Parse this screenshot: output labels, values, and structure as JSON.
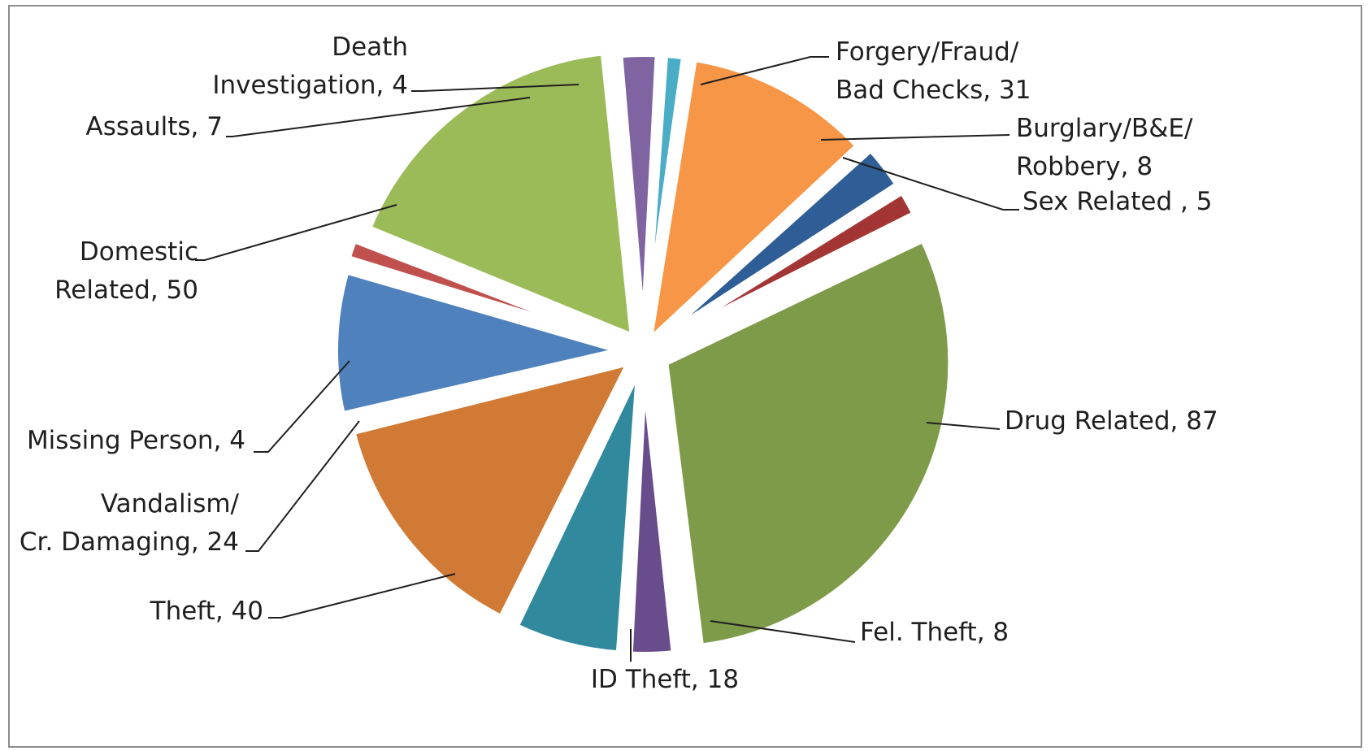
{
  "chart_data": {
    "type": "pie",
    "title": "",
    "slices": [
      {
        "label_lines": [
          "Forgery/Fraud/",
          "Bad Checks, 31"
        ],
        "category": "Forgery/Fraud/ Bad Checks",
        "value": 31,
        "color": "#F79646"
      },
      {
        "label_lines": [
          "Burglary/B&E/",
          "Robbery, 8"
        ],
        "category": "Burglary/B&E/ Robbery",
        "value": 8,
        "color": "#2E5E95"
      },
      {
        "label_lines": [
          "Sex Related , 5"
        ],
        "category": "Sex Related",
        "value": 5,
        "color": "#A33634"
      },
      {
        "label_lines": [
          "Drug Related, 87"
        ],
        "category": "Drug Related",
        "value": 87,
        "color": "#7D9B48"
      },
      {
        "label_lines": [
          "Fel. Theft, 8"
        ],
        "category": "Fel. Theft",
        "value": 8,
        "color": "#694C8C"
      },
      {
        "label_lines": [
          "ID Theft, 18"
        ],
        "category": "ID Theft",
        "value": 18,
        "color": "#31899E"
      },
      {
        "label_lines": [
          "Theft, 40"
        ],
        "category": "Theft",
        "value": 40,
        "color": "#D07A35"
      },
      {
        "label_lines": [
          "Vandalism/",
          "Cr. Damaging, 24"
        ],
        "category": "Vandalism/ Cr. Damaging",
        "value": 24,
        "color": "#4F81BD"
      },
      {
        "label_lines": [
          "Missing Person, 4"
        ],
        "category": "Missing Person",
        "value": 4,
        "color": "#C0504D"
      },
      {
        "label_lines": [
          "Domestic",
          "Related, 50"
        ],
        "category": "Domestic Related",
        "value": 50,
        "color": "#9BBB59"
      },
      {
        "label_lines": [
          "Assaults, 7"
        ],
        "category": "Assaults",
        "value": 7,
        "color": "#8064A2"
      },
      {
        "label_lines": [
          "Death",
          "Investigation, 4"
        ],
        "category": "Death Investigation",
        "value": 4,
        "color": "#4BACC6"
      }
    ]
  }
}
